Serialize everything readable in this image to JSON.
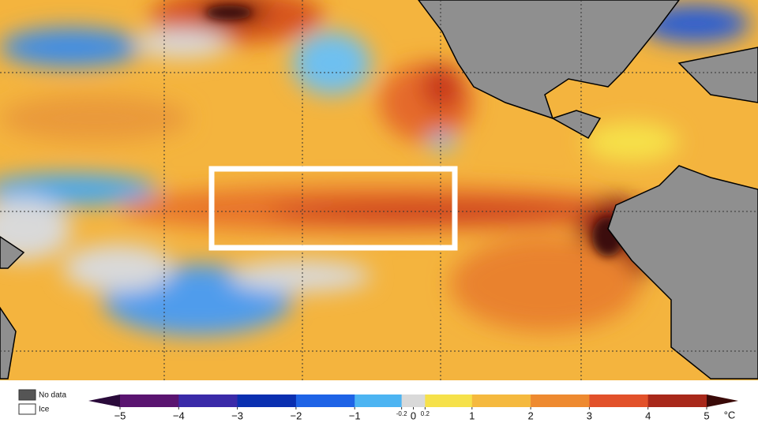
{
  "legend": [
    {
      "label": "No data",
      "color": "#555555"
    },
    {
      "label": "Ice",
      "color": "#ffffff"
    }
  ],
  "colorbar": {
    "unit": "°C",
    "ticks": [
      {
        "value": -5,
        "label": "−5"
      },
      {
        "value": -4,
        "label": "−4"
      },
      {
        "value": -3,
        "label": "−3"
      },
      {
        "value": -2,
        "label": "−2"
      },
      {
        "value": -1,
        "label": "−1"
      },
      -0.2,
      0,
      0.2,
      1,
      2,
      3,
      4,
      5
    ],
    "colors": [
      "#5a1470",
      "#3a2aa8",
      "#0a2fb0",
      "#1e63e6",
      "#4cb4f2",
      "#d9d9d9",
      "#d9d9d9",
      "#f6e14a",
      "#f5b93e",
      "#ee8a30",
      "#e2512a",
      "#a8281a"
    ],
    "under": "#2a0a3a",
    "over": "#3a0a08"
  }
}
